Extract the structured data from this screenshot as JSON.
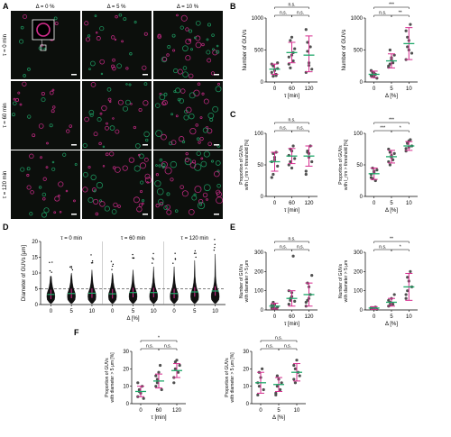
{
  "panel_letters": [
    "A",
    "B",
    "C",
    "D",
    "E",
    "F"
  ],
  "micrographs": {
    "columns": [
      "Δ = 0 %",
      "Δ = 5 %",
      "Δ = 10 %"
    ],
    "rows": [
      "τ = 0 min",
      "τ = 60 min",
      "τ = 120 min"
    ]
  },
  "colors": {
    "magenta": "#d62d8f",
    "green": "#20a86a",
    "points": "#505050"
  },
  "sig": {
    "ns": "n.s.",
    "p1": "*",
    "p2": "**",
    "p3": "***"
  },
  "chart_data": [
    {
      "id": "B-left",
      "type": "scatter",
      "xlabel": "τ [min]",
      "ylabel": "Number of GUVs",
      "categories": [
        "0",
        "60",
        "120"
      ],
      "ylim": [
        0,
        1000
      ],
      "yticks": [
        0,
        500,
        1000
      ],
      "points": [
        [
          150,
          250,
          200,
          120,
          300,
          280,
          90,
          180,
          100,
          210
        ],
        [
          280,
          650,
          420,
          330,
          520,
          390,
          220,
          700,
          460
        ],
        [
          150,
          620,
          300,
          550,
          200,
          820,
          480,
          260
        ]
      ],
      "mean": [
        200,
        460,
        420
      ],
      "sd_low": [
        120,
        300,
        160
      ],
      "sd_high": [
        280,
        620,
        720
      ],
      "brackets": [
        {
          "from": 0,
          "to": 2,
          "text": "n.s.",
          "level": 2
        },
        {
          "from": 0,
          "to": 1,
          "text": "n.s.",
          "level": 1
        },
        {
          "from": 1,
          "to": 2,
          "text": "n.s.",
          "level": 1
        }
      ]
    },
    {
      "id": "B-right",
      "type": "scatter",
      "xlabel": "Δ [%]",
      "ylabel": "Number of GUVs",
      "categories": [
        "0",
        "5",
        "10"
      ],
      "ylim": [
        0,
        1000
      ],
      "yticks": [
        0,
        500,
        1000
      ],
      "points": [
        [
          100,
          150,
          80,
          120,
          60,
          180,
          90,
          140
        ],
        [
          250,
          500,
          350,
          300,
          420,
          230,
          280,
          380
        ],
        [
          350,
          700,
          500,
          900,
          450,
          800,
          550,
          650
        ]
      ],
      "mean": [
        120,
        330,
        600
      ],
      "sd_low": [
        70,
        220,
        350
      ],
      "sd_high": [
        170,
        440,
        850
      ],
      "brackets": [
        {
          "from": 0,
          "to": 2,
          "text": "***",
          "level": 2
        },
        {
          "from": 0,
          "to": 1,
          "text": "n.s.",
          "level": 1
        },
        {
          "from": 1,
          "to": 2,
          "text": "**",
          "level": 1
        }
      ]
    },
    {
      "id": "C-left",
      "type": "scatter",
      "xlabel": "τ [min]",
      "ylabel": "Proportion of GUVs with I_rim > threshold [%]",
      "categories": [
        "0",
        "60",
        "120"
      ],
      "ylim": [
        0,
        100
      ],
      "yticks": [
        0,
        50,
        100
      ],
      "points": [
        [
          55,
          35,
          62,
          70,
          48,
          30,
          68,
          58
        ],
        [
          65,
          55,
          72,
          80,
          60,
          50,
          75,
          45
        ],
        [
          40,
          70,
          62,
          80,
          55,
          35,
          72,
          68
        ]
      ],
      "mean": [
        55,
        64,
        64
      ],
      "sd_low": [
        40,
        52,
        48
      ],
      "sd_high": [
        70,
        76,
        80
      ],
      "brackets": [
        {
          "from": 0,
          "to": 2,
          "text": "n.s.",
          "level": 2
        },
        {
          "from": 0,
          "to": 1,
          "text": "n.s.",
          "level": 1
        },
        {
          "from": 1,
          "to": 2,
          "text": "n.s.",
          "level": 1
        }
      ]
    },
    {
      "id": "C-right",
      "type": "scatter",
      "xlabel": "Δ [%]",
      "ylabel": "Proportion of GUVs with I_rim > threshold [%]",
      "categories": [
        "0",
        "5",
        "10"
      ],
      "ylim": [
        0,
        100
      ],
      "yticks": [
        0,
        50,
        100
      ],
      "points": [
        [
          30,
          45,
          38,
          25,
          42,
          35,
          28,
          40
        ],
        [
          55,
          70,
          62,
          58,
          68,
          75,
          50,
          65
        ],
        [
          72,
          85,
          78,
          90,
          80,
          76,
          84,
          88
        ]
      ],
      "mean": [
        36,
        63,
        80
      ],
      "sd_low": [
        27,
        53,
        73
      ],
      "sd_high": [
        45,
        73,
        87
      ],
      "brackets": [
        {
          "from": 0,
          "to": 2,
          "text": "***",
          "level": 2
        },
        {
          "from": 0,
          "to": 1,
          "text": "***",
          "level": 1
        },
        {
          "from": 1,
          "to": 2,
          "text": "*",
          "level": 1
        }
      ]
    },
    {
      "id": "D",
      "type": "violin",
      "xlabel": "Δ [%]",
      "ylabel": "Diameter of GUVs [μm]",
      "group_labels": [
        "τ = 0 min",
        "τ = 60 min",
        "τ = 120 min"
      ],
      "categories": [
        "0",
        "5",
        "10",
        "0",
        "5",
        "10",
        "0",
        "5",
        "10"
      ],
      "ylim": [
        0,
        20
      ],
      "yticks": [
        0,
        5,
        10,
        15,
        20
      ],
      "threshold": 5,
      "tops": [
        9,
        10,
        11,
        10,
        11,
        12,
        12,
        14,
        16
      ],
      "means": [
        3.2,
        3.5,
        3.6,
        3.4,
        3.8,
        3.8,
        3.5,
        4.0,
        4.3
      ]
    },
    {
      "id": "E-left",
      "type": "scatter",
      "xlabel": "τ [min]",
      "ylabel": "Number of GUVs with diameter > 5 μm",
      "categories": [
        "0",
        "60",
        "120"
      ],
      "ylim": [
        0,
        300
      ],
      "yticks": [
        0,
        100,
        200,
        300
      ],
      "points": [
        [
          10,
          20,
          30,
          5,
          15,
          25,
          40,
          8
        ],
        [
          30,
          60,
          90,
          280,
          45,
          100,
          50,
          70
        ],
        [
          20,
          50,
          120,
          80,
          180,
          40,
          140,
          60
        ]
      ],
      "mean": [
        20,
        60,
        80
      ],
      "sd_low": [
        5,
        20,
        20
      ],
      "sd_high": [
        35,
        100,
        140
      ],
      "brackets": [
        {
          "from": 0,
          "to": 2,
          "text": "n.s.",
          "level": 2
        },
        {
          "from": 0,
          "to": 1,
          "text": "n.s.",
          "level": 1
        },
        {
          "from": 1,
          "to": 2,
          "text": "n.s.",
          "level": 1
        }
      ]
    },
    {
      "id": "E-right",
      "type": "scatter",
      "xlabel": "Δ [%]",
      "ylabel": "Number of GUVs with diameter > 5 μm",
      "categories": [
        "0",
        "5",
        "10"
      ],
      "ylim": [
        0,
        300
      ],
      "yticks": [
        0,
        100,
        200,
        300
      ],
      "points": [
        [
          5,
          10,
          8,
          15,
          3,
          12
        ],
        [
          20,
          40,
          60,
          30,
          80,
          50,
          25
        ],
        [
          60,
          100,
          150,
          200,
          120,
          80,
          170
        ]
      ],
      "mean": [
        10,
        40,
        120
      ],
      "sd_low": [
        3,
        20,
        50
      ],
      "sd_high": [
        17,
        60,
        190
      ],
      "brackets": [
        {
          "from": 0,
          "to": 2,
          "text": "**",
          "level": 2
        },
        {
          "from": 0,
          "to": 1,
          "text": "n.s.",
          "level": 1
        },
        {
          "from": 1,
          "to": 2,
          "text": "*",
          "level": 1
        }
      ]
    },
    {
      "id": "F-left",
      "type": "scatter",
      "xlabel": "τ [min]",
      "ylabel": "Proportion of GUVs with diameter > 5 μm [%]",
      "categories": [
        "0",
        "60",
        "120"
      ],
      "ylim": [
        0,
        30
      ],
      "yticks": [
        0,
        10,
        20,
        30
      ],
      "points": [
        [
          4,
          8,
          6,
          10,
          3,
          12,
          7
        ],
        [
          10,
          14,
          18,
          22,
          8,
          16,
          12
        ],
        [
          15,
          20,
          25,
          18,
          22,
          12,
          24
        ]
      ],
      "mean": [
        7,
        13,
        19
      ],
      "sd_low": [
        4,
        9,
        15
      ],
      "sd_high": [
        10,
        17,
        23
      ],
      "brackets": [
        {
          "from": 0,
          "to": 2,
          "text": "*",
          "level": 2
        },
        {
          "from": 0,
          "to": 1,
          "text": "n.s.",
          "level": 1
        },
        {
          "from": 1,
          "to": 2,
          "text": "n.s.",
          "level": 1
        }
      ]
    },
    {
      "id": "F-right",
      "type": "scatter",
      "xlabel": "Δ [%]",
      "ylabel": "Proportion of GUVs with diameter > 5 μm [%]",
      "categories": [
        "0",
        "5",
        "10"
      ],
      "ylim": [
        0,
        30
      ],
      "yticks": [
        0,
        10,
        20,
        30
      ],
      "points": [
        [
          5,
          10,
          15,
          20,
          8,
          12,
          18
        ],
        [
          6,
          10,
          14,
          8,
          12,
          5,
          16
        ],
        [
          14,
          20,
          25,
          18,
          16,
          22,
          12
        ]
      ],
      "mean": [
        12,
        11,
        18
      ],
      "sd_low": [
        6,
        7,
        13
      ],
      "sd_high": [
        18,
        15,
        23
      ],
      "brackets": [
        {
          "from": 0,
          "to": 2,
          "text": "n.s.",
          "level": 2
        },
        {
          "from": 0,
          "to": 1,
          "text": "n.s.",
          "level": 1
        },
        {
          "from": 1,
          "to": 2,
          "text": "n.s.",
          "level": 1
        }
      ]
    }
  ]
}
